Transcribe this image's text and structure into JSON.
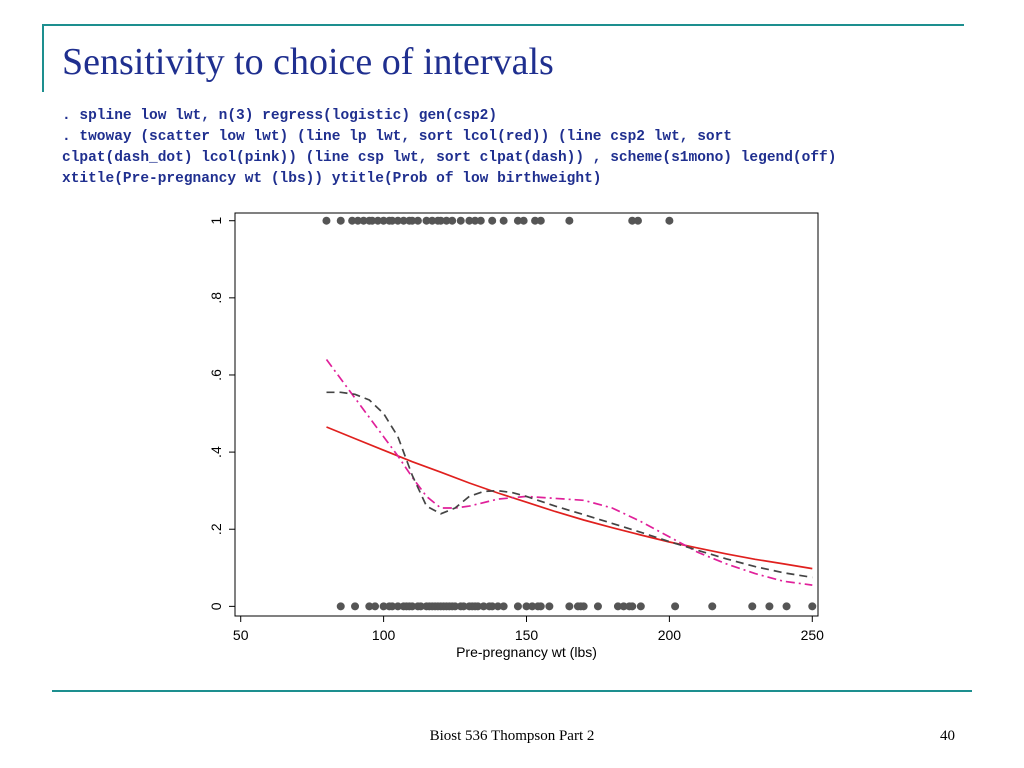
{
  "slide": {
    "title": "Sensitivity to choice of intervals",
    "code_lines": [
      ". spline low lwt, n(3) regress(logistic) gen(csp2)",
      ". twoway (scatter low lwt) (line lp lwt, sort lcol(red)) (line csp2 lwt, sort",
      "clpat(dash_dot) lcol(pink)) (line csp lwt, sort clpat(dash)) , scheme(s1mono) legend(off)",
      "xtitle(Pre-pregnancy wt (lbs)) ytitle(Prob of low birthweight)"
    ],
    "footer": "Biost 536 Thompson Part 2",
    "page_number": "40"
  },
  "colors": {
    "accent_rule": "#1d8f8f",
    "title": "#1f2f8f",
    "points": "#555555",
    "red_line": "#e0201e",
    "pink_line": "#e0209a",
    "dash_line": "#444444"
  },
  "chart_data": {
    "type": "scatter",
    "title": "",
    "xlabel": "Pre-pregnancy wt (lbs)",
    "ylabel": "",
    "xlim": [
      48,
      252
    ],
    "ylim": [
      -0.025,
      1.02
    ],
    "x_ticks": [
      50,
      100,
      150,
      200,
      250
    ],
    "y_ticks": [
      0,
      0.2,
      0.4,
      0.6,
      0.8,
      1
    ],
    "y_tick_labels": [
      "0",
      ".2",
      ".4",
      ".6",
      ".8",
      "1"
    ],
    "grid": false,
    "legend": "off",
    "scatter_points": [
      {
        "x": 80,
        "y": 1
      },
      {
        "x": 85,
        "y": 1
      },
      {
        "x": 89,
        "y": 1
      },
      {
        "x": 91,
        "y": 1
      },
      {
        "x": 93,
        "y": 1
      },
      {
        "x": 95,
        "y": 1
      },
      {
        "x": 96,
        "y": 1
      },
      {
        "x": 98,
        "y": 1
      },
      {
        "x": 100,
        "y": 1
      },
      {
        "x": 102,
        "y": 1
      },
      {
        "x": 103,
        "y": 1
      },
      {
        "x": 105,
        "y": 1
      },
      {
        "x": 107,
        "y": 1
      },
      {
        "x": 109,
        "y": 1
      },
      {
        "x": 110,
        "y": 1
      },
      {
        "x": 112,
        "y": 1
      },
      {
        "x": 115,
        "y": 1
      },
      {
        "x": 117,
        "y": 1
      },
      {
        "x": 119,
        "y": 1
      },
      {
        "x": 120,
        "y": 1
      },
      {
        "x": 122,
        "y": 1
      },
      {
        "x": 124,
        "y": 1
      },
      {
        "x": 127,
        "y": 1
      },
      {
        "x": 130,
        "y": 1
      },
      {
        "x": 132,
        "y": 1
      },
      {
        "x": 134,
        "y": 1
      },
      {
        "x": 138,
        "y": 1
      },
      {
        "x": 142,
        "y": 1
      },
      {
        "x": 147,
        "y": 1
      },
      {
        "x": 149,
        "y": 1
      },
      {
        "x": 153,
        "y": 1
      },
      {
        "x": 155,
        "y": 1
      },
      {
        "x": 165,
        "y": 1
      },
      {
        "x": 187,
        "y": 1
      },
      {
        "x": 189,
        "y": 1
      },
      {
        "x": 200,
        "y": 1
      },
      {
        "x": 85,
        "y": 0
      },
      {
        "x": 90,
        "y": 0
      },
      {
        "x": 95,
        "y": 0
      },
      {
        "x": 97,
        "y": 0
      },
      {
        "x": 100,
        "y": 0
      },
      {
        "x": 102,
        "y": 0
      },
      {
        "x": 103,
        "y": 0
      },
      {
        "x": 105,
        "y": 0
      },
      {
        "x": 107,
        "y": 0
      },
      {
        "x": 108,
        "y": 0
      },
      {
        "x": 109,
        "y": 0
      },
      {
        "x": 110,
        "y": 0
      },
      {
        "x": 112,
        "y": 0
      },
      {
        "x": 113,
        "y": 0
      },
      {
        "x": 115,
        "y": 0
      },
      {
        "x": 116,
        "y": 0
      },
      {
        "x": 117,
        "y": 0
      },
      {
        "x": 118,
        "y": 0
      },
      {
        "x": 119,
        "y": 0
      },
      {
        "x": 120,
        "y": 0
      },
      {
        "x": 121,
        "y": 0
      },
      {
        "x": 122,
        "y": 0
      },
      {
        "x": 123,
        "y": 0
      },
      {
        "x": 124,
        "y": 0
      },
      {
        "x": 125,
        "y": 0
      },
      {
        "x": 127,
        "y": 0
      },
      {
        "x": 128,
        "y": 0
      },
      {
        "x": 130,
        "y": 0
      },
      {
        "x": 131,
        "y": 0
      },
      {
        "x": 132,
        "y": 0
      },
      {
        "x": 133,
        "y": 0
      },
      {
        "x": 135,
        "y": 0
      },
      {
        "x": 137,
        "y": 0
      },
      {
        "x": 138,
        "y": 0
      },
      {
        "x": 140,
        "y": 0
      },
      {
        "x": 142,
        "y": 0
      },
      {
        "x": 147,
        "y": 0
      },
      {
        "x": 150,
        "y": 0
      },
      {
        "x": 152,
        "y": 0
      },
      {
        "x": 154,
        "y": 0
      },
      {
        "x": 155,
        "y": 0
      },
      {
        "x": 158,
        "y": 0
      },
      {
        "x": 165,
        "y": 0
      },
      {
        "x": 168,
        "y": 0
      },
      {
        "x": 169,
        "y": 0
      },
      {
        "x": 170,
        "y": 0
      },
      {
        "x": 175,
        "y": 0
      },
      {
        "x": 182,
        "y": 0
      },
      {
        "x": 184,
        "y": 0
      },
      {
        "x": 186,
        "y": 0
      },
      {
        "x": 187,
        "y": 0
      },
      {
        "x": 190,
        "y": 0
      },
      {
        "x": 202,
        "y": 0
      },
      {
        "x": 215,
        "y": 0
      },
      {
        "x": 229,
        "y": 0
      },
      {
        "x": 235,
        "y": 0
      },
      {
        "x": 241,
        "y": 0
      },
      {
        "x": 250,
        "y": 0
      }
    ],
    "series": [
      {
        "color": "#e0201e",
        "style": "solid",
        "x": [
          80,
          90,
          100,
          110,
          120,
          130,
          140,
          150,
          160,
          170,
          180,
          190,
          200,
          210,
          220,
          230,
          240,
          250
        ],
        "y": [
          0.465,
          0.435,
          0.405,
          0.375,
          0.348,
          0.32,
          0.294,
          0.27,
          0.246,
          0.224,
          0.204,
          0.185,
          0.167,
          0.151,
          0.136,
          0.122,
          0.11,
          0.098
        ]
      },
      {
        "color": "#e0209a",
        "style": "dash-dot",
        "x": [
          80,
          85,
          90,
          95,
          100,
          105,
          110,
          115,
          120,
          125,
          130,
          140,
          150,
          160,
          170,
          180,
          190,
          200,
          210,
          220,
          230,
          240,
          250
        ],
        "y": [
          0.64,
          0.59,
          0.54,
          0.49,
          0.44,
          0.39,
          0.335,
          0.285,
          0.255,
          0.255,
          0.26,
          0.278,
          0.285,
          0.28,
          0.275,
          0.255,
          0.22,
          0.18,
          0.14,
          0.11,
          0.085,
          0.065,
          0.055
        ]
      },
      {
        "color": "#444444",
        "style": "dash",
        "x": [
          80,
          85,
          90,
          95,
          100,
          105,
          110,
          115,
          120,
          125,
          130,
          135,
          140,
          145,
          150,
          160,
          170,
          180,
          190,
          200,
          210,
          220,
          230,
          240,
          250
        ],
        "y": [
          0.555,
          0.555,
          0.55,
          0.535,
          0.5,
          0.44,
          0.34,
          0.26,
          0.24,
          0.255,
          0.285,
          0.298,
          0.3,
          0.295,
          0.285,
          0.26,
          0.238,
          0.215,
          0.192,
          0.168,
          0.145,
          0.123,
          0.103,
          0.087,
          0.075
        ]
      }
    ]
  }
}
